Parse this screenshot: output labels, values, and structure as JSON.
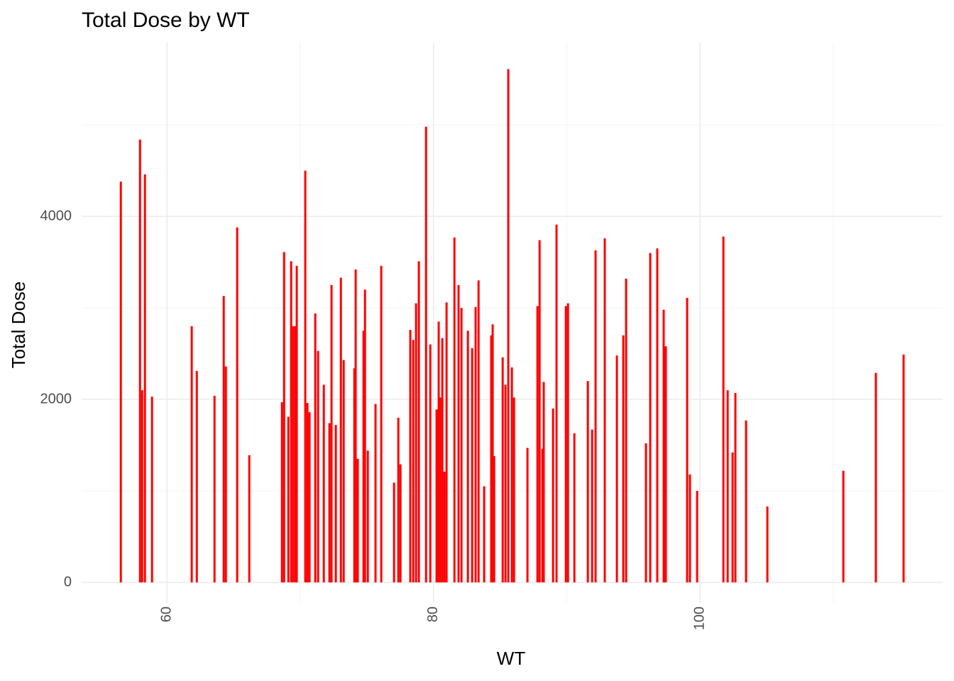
{
  "chart_data": {
    "type": "bar",
    "title": "Total Dose by WT",
    "x_label": "WT",
    "y_label": "Total Dose",
    "color": "#ff0000",
    "grid": true,
    "xlim": [
      53.6,
      118.2
    ],
    "ylim": [
      -225,
      5900
    ],
    "xticks": [
      60,
      80,
      100
    ],
    "yticks": [
      0,
      2000,
      4000
    ],
    "x_minor_ticks": [
      70,
      90,
      110
    ],
    "y_minor_ticks": [
      1000,
      3000,
      5000
    ],
    "x": [
      56.54,
      57.98,
      58.14,
      58.35,
      58.88,
      61.86,
      62.24,
      63.57,
      64.26,
      64.42,
      65.27,
      66.18,
      68.63,
      68.79,
      69.11,
      69.32,
      69.48,
      69.64,
      69.74,
      70.38,
      70.54,
      70.7,
      71.13,
      71.34,
      71.77,
      72.19,
      72.35,
      72.67,
      73.05,
      73.26,
      74.06,
      74.16,
      74.32,
      74.75,
      74.86,
      75.07,
      75.65,
      76.08,
      77.04,
      77.36,
      77.52,
      78.26,
      78.48,
      78.69,
      78.9,
      79.44,
      79.76,
      80.23,
      80.39,
      80.5,
      80.66,
      80.82,
      80.98,
      81.57,
      81.88,
      82.1,
      82.58,
      82.9,
      83.16,
      83.38,
      83.8,
      84.33,
      84.44,
      84.55,
      85.19,
      85.4,
      85.61,
      85.88,
      86.04,
      87.05,
      87.8,
      87.96,
      88.17,
      88.27,
      88.97,
      89.23,
      89.93,
      90.09,
      90.57,
      91.58,
      91.9,
      92.16,
      92.85,
      93.76,
      94.24,
      94.45,
      95.94,
      96.26,
      96.79,
      97.27,
      97.43,
      99.03,
      99.24,
      99.78,
      101.75,
      102.07,
      102.44,
      102.65,
      103.45,
      105.05,
      110.75,
      113.19,
      115.27
    ],
    "values": [
      4380,
      4840,
      2100,
      4460,
      2030,
      2800,
      2310,
      2040,
      3130,
      2360,
      3880,
      1390,
      1970,
      3610,
      1810,
      3510,
      2800,
      2800,
      3460,
      4500,
      1960,
      1860,
      2940,
      2530,
      2160,
      1740,
      3250,
      1720,
      3330,
      2430,
      2340,
      3420,
      1350,
      2750,
      3200,
      1440,
      1950,
      3460,
      1090,
      1800,
      1290,
      2760,
      2650,
      3050,
      3510,
      4980,
      2600,
      1890,
      2850,
      2020,
      2670,
      1210,
      3060,
      3770,
      3250,
      3000,
      2750,
      2560,
      3010,
      3300,
      1050,
      2700,
      2820,
      1380,
      2460,
      2160,
      5610,
      2350,
      2020,
      1470,
      3020,
      3740,
      1460,
      2190,
      1900,
      3910,
      3020,
      3050,
      1630,
      2200,
      1670,
      3630,
      3760,
      2480,
      2700,
      3320,
      1520,
      3600,
      3650,
      2980,
      2580,
      3110,
      1180,
      1000,
      3780,
      2100,
      1420,
      2070,
      1770,
      830,
      1220,
      2290,
      2490
    ]
  }
}
